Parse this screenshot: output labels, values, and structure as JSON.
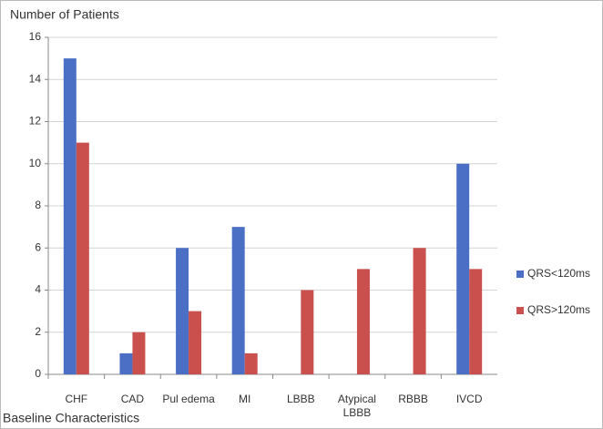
{
  "chart_data": {
    "type": "bar",
    "title": "Number of Patients",
    "x_label": "Baseline Characteristics",
    "categories": [
      "CHF",
      "CAD",
      "Pul edema",
      "MI",
      "LBBB",
      "Atypical LBBB",
      "RBBB",
      "IVCD"
    ],
    "series": [
      {
        "name": "QRS<120ms",
        "color": "#4a6fc4",
        "values": [
          15,
          1,
          6,
          7,
          0,
          0,
          0,
          10
        ]
      },
      {
        "name": "QRS>120ms",
        "color": "#c9504d",
        "values": [
          11,
          2,
          3,
          1,
          4,
          5,
          6,
          5
        ]
      }
    ],
    "ylim": [
      0,
      16
    ],
    "yticks": [
      0,
      2,
      4,
      6,
      8,
      10,
      12,
      14,
      16
    ],
    "grid": true,
    "legend": "right"
  }
}
